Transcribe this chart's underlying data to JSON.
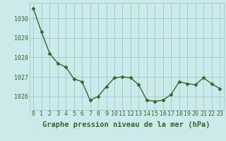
{
  "x": [
    0,
    1,
    2,
    3,
    4,
    5,
    6,
    7,
    8,
    9,
    10,
    11,
    12,
    13,
    14,
    15,
    16,
    17,
    18,
    19,
    20,
    21,
    22,
    23
  ],
  "y": [
    1030.5,
    1029.3,
    1028.2,
    1027.7,
    1027.5,
    1026.9,
    1026.75,
    1025.8,
    1026.0,
    1026.5,
    1026.95,
    1027.0,
    1026.95,
    1026.6,
    1025.8,
    1025.75,
    1025.8,
    1026.1,
    1026.75,
    1026.65,
    1026.6,
    1026.95,
    1026.65,
    1026.4
  ],
  "line_color": "#2d6a2d",
  "marker_color": "#2d6a2d",
  "bg_color": "#cceaea",
  "grid_color": "#99cccc",
  "text_color": "#2d6a2d",
  "xlabel": "Graphe pression niveau de la mer (hPa)",
  "ylim": [
    1025.3,
    1030.8
  ],
  "yticks": [
    1026,
    1027,
    1028,
    1029,
    1030
  ],
  "xticks": [
    0,
    1,
    2,
    3,
    4,
    5,
    6,
    7,
    8,
    9,
    10,
    11,
    12,
    13,
    14,
    15,
    16,
    17,
    18,
    19,
    20,
    21,
    22,
    23
  ],
  "xlabel_fontsize": 7.5,
  "tick_fontsize": 6.0
}
